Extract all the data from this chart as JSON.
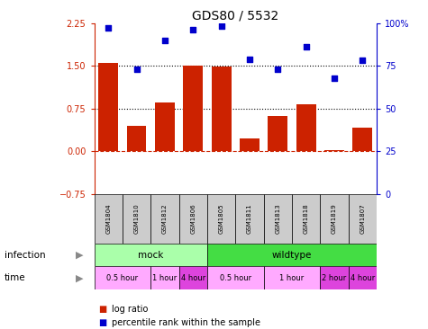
{
  "title": "GDS80 / 5532",
  "samples": [
    "GSM1804",
    "GSM1810",
    "GSM1812",
    "GSM1806",
    "GSM1805",
    "GSM1811",
    "GSM1813",
    "GSM1818",
    "GSM1819",
    "GSM1807"
  ],
  "log_ratio": [
    1.55,
    0.45,
    0.85,
    1.5,
    1.48,
    0.22,
    0.62,
    0.82,
    0.02,
    0.42
  ],
  "percentile": [
    97,
    73,
    90,
    96,
    98,
    79,
    73,
    86,
    68,
    78
  ],
  "ylim_left": [
    -0.75,
    2.25
  ],
  "ylim_right": [
    0,
    100
  ],
  "yticks_left": [
    -0.75,
    0,
    0.75,
    1.5,
    2.25
  ],
  "yticks_right": [
    0,
    25,
    50,
    75,
    100
  ],
  "hlines": [
    {
      "val": 0,
      "style": "--",
      "color": "#cc2200"
    },
    {
      "val": 0.75,
      "style": ":",
      "color": "black"
    },
    {
      "val": 1.5,
      "style": ":",
      "color": "black"
    }
  ],
  "bar_color": "#cc2200",
  "dot_color": "#0000cc",
  "sample_bg": "#cccccc",
  "infection_groups": [
    {
      "label": "mock",
      "start": 0,
      "end": 4,
      "color": "#aaffaa"
    },
    {
      "label": "wildtype",
      "start": 4,
      "end": 10,
      "color": "#44dd44"
    }
  ],
  "time_groups": [
    {
      "label": "0.5 hour",
      "start": 0,
      "end": 2,
      "color": "#ffaaff"
    },
    {
      "label": "1 hour",
      "start": 2,
      "end": 3,
      "color": "#ffaaff"
    },
    {
      "label": "4 hour",
      "start": 3,
      "end": 4,
      "color": "#dd44dd"
    },
    {
      "label": "0.5 hour",
      "start": 4,
      "end": 6,
      "color": "#ffaaff"
    },
    {
      "label": "1 hour",
      "start": 6,
      "end": 8,
      "color": "#ffaaff"
    },
    {
      "label": "2 hour",
      "start": 8,
      "end": 9,
      "color": "#dd44dd"
    },
    {
      "label": "4 hour",
      "start": 9,
      "end": 10,
      "color": "#dd44dd"
    }
  ],
  "legend_bar_label": "log ratio",
  "legend_dot_label": "percentile rank within the sample",
  "left_labels": [
    {
      "text": "infection",
      "row": "infection"
    },
    {
      "text": "time",
      "row": "time"
    }
  ]
}
